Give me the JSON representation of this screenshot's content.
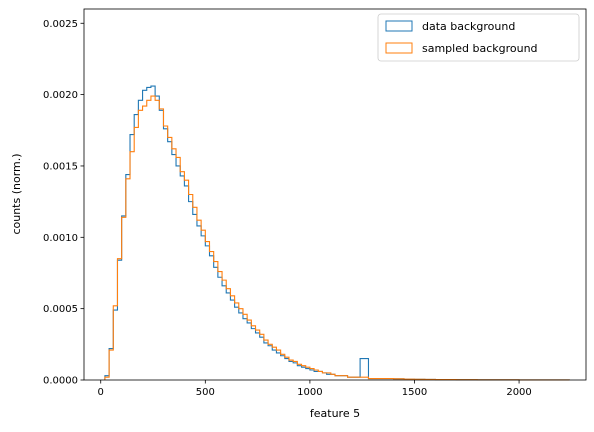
{
  "chart_data": {
    "type": "histogram",
    "title": "",
    "xlabel": "feature 5",
    "ylabel": "counts (norm.)",
    "xlim": [
      -80,
      2320
    ],
    "ylim": [
      0,
      0.0026
    ],
    "xticks": [
      0,
      500,
      1000,
      1500,
      2000
    ],
    "xtick_labels": [
      "0",
      "500",
      "1000",
      "1500",
      "2000"
    ],
    "yticks": [
      0,
      0.0005,
      0.001,
      0.0015,
      0.002,
      0.0025
    ],
    "ytick_labels": [
      "0.0000",
      "0.0005",
      "0.0010",
      "0.0015",
      "0.0020",
      "0.0025"
    ],
    "grid": false,
    "legend_position": "top-right",
    "histtype": "step",
    "bin_edges": [
      20,
      40,
      60,
      80,
      100,
      120,
      140,
      160,
      180,
      200,
      220,
      240,
      260,
      280,
      300,
      320,
      340,
      360,
      380,
      400,
      420,
      440,
      460,
      480,
      500,
      520,
      540,
      560,
      580,
      600,
      620,
      640,
      660,
      680,
      700,
      720,
      740,
      760,
      780,
      800,
      820,
      840,
      860,
      880,
      900,
      920,
      940,
      960,
      980,
      1000,
      1020,
      1040,
      1060,
      1080,
      1100,
      1120,
      1140,
      1160,
      1180,
      1200,
      1240,
      1280,
      1320,
      1360,
      1400,
      1450,
      1500,
      1550,
      1600,
      1700,
      1800,
      1900,
      2000,
      2100,
      2200,
      2240
    ],
    "series": [
      {
        "name": "data background",
        "color": "#1f77b4",
        "values": [
          3e-05,
          0.00022,
          0.00049,
          0.00084,
          0.00115,
          0.00144,
          0.00172,
          0.00186,
          0.00196,
          0.00203,
          0.00205,
          0.00206,
          0.00199,
          0.00189,
          0.00176,
          0.00167,
          0.00158,
          0.0015,
          0.00143,
          0.00136,
          0.00125,
          0.00116,
          0.00108,
          0.00101,
          0.00094,
          0.00087,
          0.00079,
          0.00072,
          0.00066,
          0.00061,
          0.00056,
          0.00051,
          0.00047,
          0.00043,
          0.0004,
          0.00036,
          0.00033,
          0.0003,
          0.00026,
          0.00024,
          0.00021,
          0.00019,
          0.00017,
          0.00015,
          0.00013,
          0.00012,
          0.0001,
          9e-05,
          8e-05,
          7e-05,
          6e-05,
          6e-05,
          5e-05,
          4e-05,
          4e-05,
          3e-05,
          3e-05,
          3e-05,
          2e-05,
          2e-05,
          0.00015,
          1e-05,
          1e-05,
          1e-05,
          8e-06,
          6e-06,
          5e-06,
          4e-06,
          3e-06,
          2e-06,
          1e-06,
          1e-06,
          5e-07,
          3e-07,
          2e-07
        ]
      },
      {
        "name": "sampled background",
        "color": "#ff7f0e",
        "values": [
          2e-05,
          0.00021,
          0.00052,
          0.00085,
          0.00114,
          0.00141,
          0.0016,
          0.00177,
          0.00189,
          0.00192,
          0.00196,
          0.00199,
          0.00196,
          0.0019,
          0.00178,
          0.0017,
          0.00162,
          0.00156,
          0.00146,
          0.0014,
          0.0013,
          0.00121,
          0.00112,
          0.00105,
          0.00097,
          0.0009,
          0.00083,
          0.00076,
          0.0007,
          0.00064,
          0.00059,
          0.00054,
          0.0005,
          0.00046,
          0.00042,
          0.00038,
          0.00035,
          0.00032,
          0.00028,
          0.00025,
          0.00023,
          0.00021,
          0.00018,
          0.00016,
          0.00014,
          0.00013,
          0.00011,
          0.0001,
          9e-05,
          8e-05,
          7e-05,
          6e-05,
          5e-05,
          5e-05,
          4e-05,
          3e-05,
          3e-05,
          3e-05,
          2e-05,
          2e-05,
          2e-05,
          1e-05,
          1e-05,
          1e-05,
          8e-06,
          6e-06,
          5e-06,
          4e-06,
          3e-06,
          2e-06,
          1e-06,
          1e-06,
          5e-07,
          3e-07,
          2e-07
        ]
      }
    ]
  }
}
